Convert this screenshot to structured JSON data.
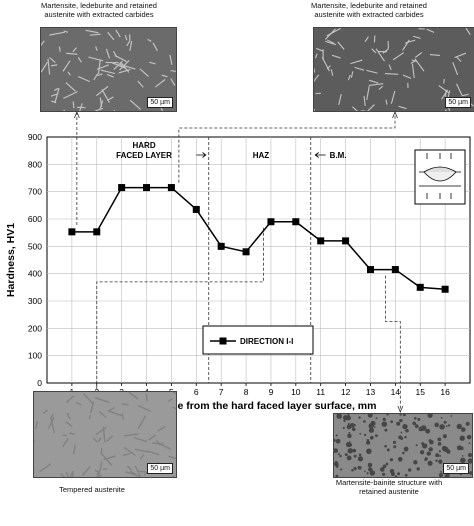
{
  "micrographs": [
    {
      "caption": "Martensite, ledeburite and retained austenite with extracted carbides",
      "scale": "50 µm"
    },
    {
      "caption": "Martensite, ledeburite and retained austenite with extracted carbides",
      "scale": "50 µm"
    },
    {
      "caption": "Tempered austenite",
      "scale": "50 µm"
    },
    {
      "caption": "Martensite-bainite structure with retained austenite",
      "scale": "50 µm"
    }
  ],
  "chart_data": {
    "type": "line",
    "xlabel": "Distance from the hard faced layer surface, mm",
    "ylabel": "Hardness, HV1",
    "xlim": [
      0,
      17
    ],
    "ylim": [
      0,
      900
    ],
    "x_ticks": [
      "1",
      "2",
      "3",
      "4",
      "5",
      "6",
      "7",
      "8",
      "9",
      "10",
      "11",
      "12",
      "13",
      "14",
      "15",
      "16"
    ],
    "y_ticks": [
      "0",
      "100",
      "200",
      "300",
      "400",
      "500",
      "600",
      "700",
      "800",
      "900"
    ],
    "grid": true,
    "legend_placement": "center",
    "zones": [
      {
        "label": "HARD FACED LAYER",
        "arrow": "right"
      },
      {
        "label": "HAZ"
      },
      {
        "label": "B.M.",
        "arrow": "left"
      }
    ],
    "zone_boundaries": [
      6.5,
      10.6
    ],
    "series": [
      {
        "name": "DIRECTION I-I",
        "marker": "square",
        "color": "#000000",
        "x": [
          1,
          2,
          3,
          4,
          5,
          6,
          7,
          8,
          9,
          10,
          11,
          12,
          13,
          14,
          15,
          16
        ],
        "y": [
          553,
          553,
          715,
          715,
          715,
          635,
          500,
          480,
          590,
          590,
          520,
          520,
          415,
          415,
          350,
          343
        ]
      }
    ]
  }
}
